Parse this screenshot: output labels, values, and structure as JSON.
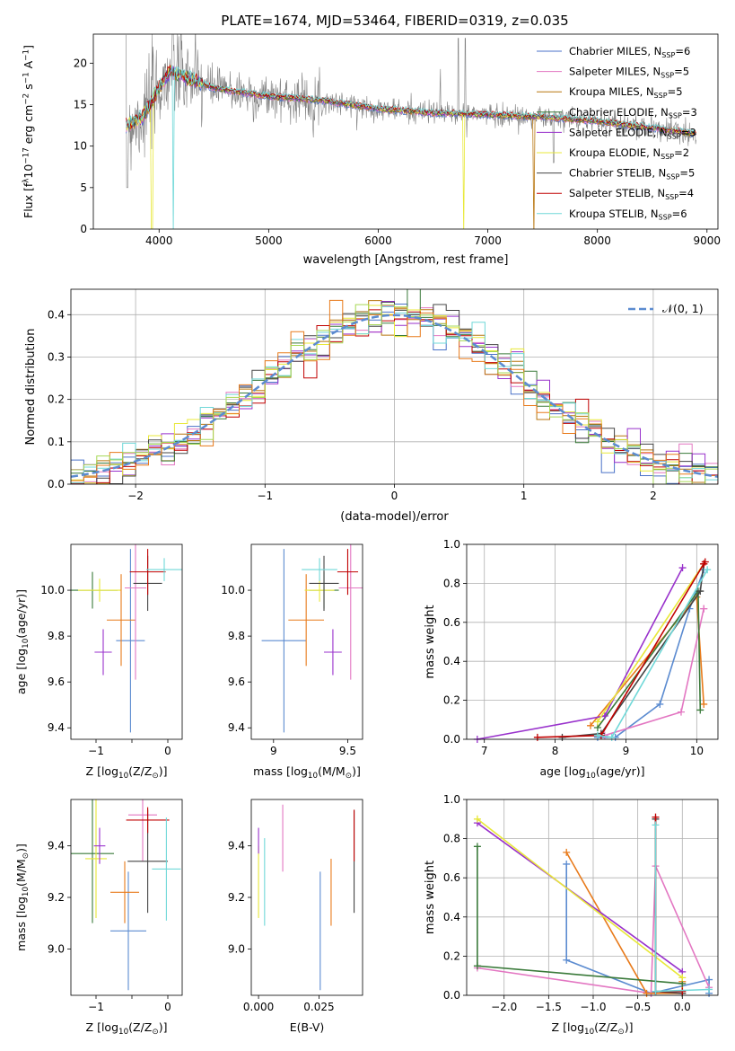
{
  "figure": {
    "title": "PLATE=1674, MJD=53464, FIBERID=0319, z=0.035"
  },
  "chart_data": [
    {
      "id": "spectrum",
      "type": "line",
      "xlabel": "wavelength [Angstrom, rest frame]",
      "ylabel_parts": [
        "Flux [f",
        "λ",
        "10",
        "−17",
        " erg cm",
        "−2",
        " s",
        "−1",
        " A",
        "−1",
        "]"
      ],
      "xlim": [
        3400,
        9100
      ],
      "ylim": [
        0,
        23.5
      ],
      "xticks": [
        4000,
        5000,
        6000,
        7000,
        8000,
        9000
      ],
      "yticks": [
        0,
        5,
        10,
        15,
        20
      ],
      "grid": false,
      "legend_position": "upper right",
      "series": [
        {
          "name_main": "Chabrier MILES, N",
          "name_sub": "SSP",
          "name_tail": "=6",
          "color": "#4a72c8"
        },
        {
          "name_main": "Salpeter MILES, N",
          "name_sub": "SSP",
          "name_tail": "=5",
          "color": "#e377c2"
        },
        {
          "name_main": "Kroupa MILES, N",
          "name_sub": "SSP",
          "name_tail": "=5",
          "color": "#b8760f"
        },
        {
          "name_main": "Chabrier ELODIE, N",
          "name_sub": "SSP",
          "name_tail": "=3",
          "color": "#3a7a3a"
        },
        {
          "name_main": "Salpeter ELODIE, N",
          "name_sub": "SSP",
          "name_tail": "=3",
          "color": "#9932cc"
        },
        {
          "name_main": "Kroupa ELODIE, N",
          "name_sub": "SSP",
          "name_tail": "=2",
          "color": "#e8e838"
        },
        {
          "name_main": "Chabrier STELIB, N",
          "name_sub": "SSP",
          "name_tail": "=5",
          "color": "#444444"
        },
        {
          "name_main": "Salpeter STELIB, N",
          "name_sub": "SSP",
          "name_tail": "=4",
          "color": "#c00000"
        },
        {
          "name_main": "Kroupa STELIB, N",
          "name_sub": "SSP",
          "name_tail": "=6",
          "color": "#70d8d8"
        }
      ],
      "data_series": {
        "name": "",
        "color": "#808080",
        "continuum_points": [
          [
            3700,
            12.5
          ],
          [
            3850,
            13.5
          ],
          [
            4000,
            17
          ],
          [
            4100,
            19
          ],
          [
            4300,
            18
          ],
          [
            4500,
            17
          ],
          [
            5000,
            16
          ],
          [
            5500,
            15.5
          ],
          [
            6000,
            14.5
          ],
          [
            6500,
            14
          ],
          [
            7000,
            13.8
          ],
          [
            7500,
            13.5
          ],
          [
            8000,
            13
          ],
          [
            8500,
            12.2
          ],
          [
            8900,
            11.5
          ]
        ]
      },
      "drops": [
        {
          "x": 3935,
          "series": "Kroupa ELODIE"
        },
        {
          "x": 4130,
          "series": "Kroupa STELIB"
        },
        {
          "x": 6780,
          "series": "Kroupa ELODIE"
        },
        {
          "x": 7420,
          "series": "Kroupa MILES"
        }
      ]
    },
    {
      "id": "residual_histogram",
      "type": "histogram",
      "xlabel": "(data-model)/error",
      "ylabel": "Normed distribution",
      "xlim": [
        -2.5,
        2.5
      ],
      "ylim": [
        0,
        0.46
      ],
      "xticks": [
        -2,
        -1,
        0,
        1,
        2
      ],
      "yticks": [
        0,
        0.1,
        0.2,
        0.3,
        0.4
      ],
      "grid": true,
      "legend": {
        "label": "𝒩(0, 1)",
        "position": "upper right"
      },
      "reference_curve": {
        "type": "gaussian",
        "mean": 0,
        "sigma": 1,
        "color": "#5b8bd0"
      },
      "bin_width": 0.1
    },
    {
      "id": "age_vs_Z",
      "type": "errorbar",
      "xlabel_parts": [
        "Z [log",
        "10",
        "(Z/Z",
        "⊙",
        ")]"
      ],
      "ylabel_parts": [
        "age  [log",
        "10",
        "(age/yr)]"
      ],
      "xlim": [
        -1.35,
        0.2
      ],
      "ylim": [
        9.35,
        10.2
      ],
      "xticks": [
        -1,
        -0.5,
        0
      ],
      "xticklabels": [
        "−1",
        "",
        "0"
      ],
      "yticks": [
        9.4,
        9.6,
        9.8,
        10.0
      ],
      "points": [
        {
          "x": -1.05,
          "y": 10.0,
          "xerr": 0.35,
          "yerr": 0.08,
          "color": "#3a7a3a"
        },
        {
          "x": -0.95,
          "y": 10.0,
          "xerr": 0.3,
          "yerr": 0.05,
          "color": "#e8e838"
        },
        {
          "x": -0.9,
          "y": 9.73,
          "xerr": 0.12,
          "yerr": 0.1,
          "color": "#9932cc"
        },
        {
          "x": -0.52,
          "y": 9.78,
          "xerr": 0.2,
          "yerr": 0.4,
          "color": "#5b8bd0"
        },
        {
          "x": -0.65,
          "y": 9.87,
          "xerr": 0.2,
          "yerr": 0.2,
          "color": "#e87a1a"
        },
        {
          "x": -0.45,
          "y": 10.01,
          "xerr": 0.15,
          "yerr": 0.4,
          "color": "#e377c2"
        },
        {
          "x": -0.28,
          "y": 10.03,
          "xerr": 0.2,
          "yerr": 0.12,
          "color": "#444444"
        },
        {
          "x": -0.28,
          "y": 10.08,
          "xerr": 0.25,
          "yerr": 0.1,
          "color": "#c00000"
        },
        {
          "x": -0.05,
          "y": 10.09,
          "xerr": 0.25,
          "yerr": 0.05,
          "color": "#70d8d8"
        }
      ]
    },
    {
      "id": "age_vs_mass",
      "type": "errorbar",
      "xlabel_parts": [
        "mass [log",
        "10",
        "(M/M",
        "⊙",
        ")]"
      ],
      "xlim": [
        8.85,
        9.6
      ],
      "ylim": [
        9.35,
        10.2
      ],
      "xticks": [
        9.0,
        9.5
      ],
      "yticks": [
        9.4,
        9.6,
        9.8,
        10.0
      ],
      "points": [
        {
          "x": 9.07,
          "y": 9.78,
          "xerr": 0.15,
          "yerr": 0.4,
          "color": "#5b8bd0"
        },
        {
          "x": 9.22,
          "y": 9.87,
          "xerr": 0.12,
          "yerr": 0.2,
          "color": "#e87a1a"
        },
        {
          "x": 9.34,
          "y": 10.0,
          "xerr": 0.1,
          "yerr": 0.08,
          "color": "#3a7a3a"
        },
        {
          "x": 9.31,
          "y": 10.0,
          "xerr": 0.1,
          "yerr": 0.05,
          "color": "#e8e838"
        },
        {
          "x": 9.4,
          "y": 9.73,
          "xerr": 0.06,
          "yerr": 0.1,
          "color": "#9932cc"
        },
        {
          "x": 9.52,
          "y": 10.01,
          "xerr": 0.08,
          "yerr": 0.4,
          "color": "#e377c2"
        },
        {
          "x": 9.34,
          "y": 10.03,
          "xerr": 0.1,
          "yerr": 0.12,
          "color": "#444444"
        },
        {
          "x": 9.5,
          "y": 10.08,
          "xerr": 0.07,
          "yerr": 0.1,
          "color": "#c00000"
        },
        {
          "x": 9.31,
          "y": 10.09,
          "xerr": 0.12,
          "yerr": 0.05,
          "color": "#70d8d8"
        }
      ]
    },
    {
      "id": "massweight_vs_age",
      "type": "line",
      "xlabel_parts": [
        "age  [log",
        "10",
        "(age/yr)]"
      ],
      "ylabel": "mass weight",
      "xlim": [
        6.75,
        10.3
      ],
      "ylim": [
        0,
        1.0
      ],
      "xticks": [
        7,
        8,
        9,
        10
      ],
      "yticks": [
        0.0,
        0.2,
        0.4,
        0.6,
        0.8,
        1.0
      ],
      "grid": true,
      "series": [
        {
          "color": "#5b8bd0",
          "points": [
            [
              8.6,
              0.01
            ],
            [
              8.85,
              0.01
            ],
            [
              9.48,
              0.18
            ],
            [
              9.9,
              0.67
            ],
            [
              10.1,
              0.87
            ]
          ]
        },
        {
          "color": "#e377c2",
          "points": [
            [
              8.7,
              0.02
            ],
            [
              9.78,
              0.14
            ],
            [
              10.1,
              0.67
            ],
            [
              10.1,
              0.67
            ]
          ]
        },
        {
          "color": "#e87a1a",
          "points": [
            [
              8.5,
              0.07
            ],
            [
              10.0,
              0.73
            ],
            [
              10.1,
              0.18
            ]
          ]
        },
        {
          "color": "#3a7a3a",
          "points": [
            [
              8.6,
              0.06
            ],
            [
              10.02,
              0.76
            ],
            [
              10.05,
              0.15
            ]
          ]
        },
        {
          "color": "#9932cc",
          "points": [
            [
              6.9,
              0.0
            ],
            [
              8.7,
              0.12
            ],
            [
              9.8,
              0.88
            ]
          ]
        },
        {
          "color": "#e8e838",
          "points": [
            [
              8.6,
              0.09
            ],
            [
              10.1,
              0.9
            ]
          ]
        },
        {
          "color": "#444444",
          "points": [
            [
              8.1,
              0.01
            ],
            [
              8.65,
              0.03
            ],
            [
              10.05,
              0.76
            ],
            [
              10.1,
              0.9
            ]
          ]
        },
        {
          "color": "#c00000",
          "points": [
            [
              7.75,
              0.01
            ],
            [
              8.65,
              0.02
            ],
            [
              10.1,
              0.9
            ],
            [
              10.12,
              0.91
            ]
          ]
        },
        {
          "color": "#70d8d8",
          "points": [
            [
              8.6,
              0.02
            ],
            [
              8.8,
              0.01
            ],
            [
              10.15,
              0.87
            ]
          ]
        }
      ]
    },
    {
      "id": "mass_vs_Z",
      "type": "errorbar",
      "xlabel_parts": [
        "Z [log",
        "10",
        "(Z/Z",
        "⊙",
        ")]"
      ],
      "ylabel_parts": [
        "mass [log",
        "10",
        "(M/M",
        "⊙",
        ")]"
      ],
      "xlim": [
        -1.35,
        0.2
      ],
      "ylim": [
        8.82,
        9.58
      ],
      "xticks": [
        -1,
        -0.5,
        0
      ],
      "xticklabels": [
        "−1",
        "",
        "0"
      ],
      "yticks": [
        9.0,
        9.2,
        9.4
      ],
      "points": [
        {
          "x": -1.05,
          "y": 9.37,
          "xerr": 0.3,
          "yerr": 0.27,
          "color": "#3a7a3a"
        },
        {
          "x": -1.0,
          "y": 9.35,
          "xerr": 0.15,
          "yerr": 0.23,
          "color": "#e8e838"
        },
        {
          "x": -0.95,
          "y": 9.4,
          "xerr": 0.08,
          "yerr": 0.07,
          "color": "#9932cc"
        },
        {
          "x": -0.55,
          "y": 9.07,
          "xerr": 0.25,
          "yerr": 0.23,
          "color": "#5b8bd0"
        },
        {
          "x": -0.6,
          "y": 9.22,
          "xerr": 0.2,
          "yerr": 0.12,
          "color": "#e87a1a"
        },
        {
          "x": -0.35,
          "y": 9.52,
          "xerr": 0.2,
          "yerr": 0.18,
          "color": "#e377c2"
        },
        {
          "x": -0.28,
          "y": 9.34,
          "xerr": 0.28,
          "yerr": 0.2,
          "color": "#444444"
        },
        {
          "x": -0.28,
          "y": 9.5,
          "xerr": 0.3,
          "yerr": 0.05,
          "color": "#c00000"
        },
        {
          "x": -0.02,
          "y": 9.31,
          "xerr": 0.2,
          "yerr": 0.2,
          "color": "#70d8d8"
        }
      ]
    },
    {
      "id": "ebv_bars",
      "type": "errorbar",
      "xlabel": "E(B-V)",
      "xlim": [
        -0.003,
        0.043
      ],
      "ylim": [
        8.82,
        9.58
      ],
      "xticks": [
        0.0,
        0.025
      ],
      "xticklabels": [
        "0.000",
        "0.025"
      ],
      "yticks": [
        9.0,
        9.2,
        9.4
      ],
      "points": [
        {
          "x": 0.0,
          "y": 9.26,
          "xerr": 0,
          "yerr": 0.14,
          "color": "#e8e838"
        },
        {
          "x": 0.0,
          "y": 9.42,
          "xerr": 0,
          "yerr": 0.05,
          "color": "#9932cc"
        },
        {
          "x": 0.0025,
          "y": 9.26,
          "xerr": 0,
          "yerr": 0.17,
          "color": "#70d8d8"
        },
        {
          "x": 0.01,
          "y": 9.43,
          "xerr": 0,
          "yerr": 0.13,
          "color": "#e377c2"
        },
        {
          "x": 0.0255,
          "y": 9.07,
          "xerr": 0,
          "yerr": 0.23,
          "color": "#5b8bd0"
        },
        {
          "x": 0.03,
          "y": 9.22,
          "xerr": 0,
          "yerr": 0.13,
          "color": "#e87a1a"
        },
        {
          "x": 0.0395,
          "y": 9.34,
          "xerr": 0,
          "yerr": 0.2,
          "color": "#444444"
        },
        {
          "x": 0.0395,
          "y": 9.44,
          "xerr": 0,
          "yerr": 0.1,
          "color": "#c00000"
        }
      ]
    },
    {
      "id": "massweight_vs_Z",
      "type": "line",
      "xlabel_parts": [
        "Z [log",
        "10",
        "(Z/Z",
        "⊙",
        ")]"
      ],
      "ylabel": "mass weight",
      "xlim": [
        -2.42,
        0.4
      ],
      "ylim": [
        0,
        1.0
      ],
      "xticks": [
        -2.0,
        -1.5,
        -1.0,
        -0.5,
        0.0
      ],
      "xticklabels": [
        "−2.0",
        "−1.5",
        "−1.0",
        "−0.5",
        "0.0"
      ],
      "yticks": [
        0.0,
        0.2,
        0.4,
        0.6,
        0.8,
        1.0
      ],
      "grid": true,
      "series": [
        {
          "color": "#5b8bd0",
          "points": [
            [
              -1.3,
              0.67
            ],
            [
              -1.3,
              0.18
            ],
            [
              -0.35,
              0.01
            ],
            [
              0.3,
              0.08
            ],
            [
              0.3,
              0.01
            ]
          ]
        },
        {
          "color": "#e377c2",
          "points": [
            [
              -2.3,
              0.14
            ],
            [
              -0.35,
              0.01
            ],
            [
              -0.3,
              0.66
            ],
            [
              0.3,
              0.04
            ]
          ]
        },
        {
          "color": "#e87a1a",
          "points": [
            [
              -1.3,
              0.73
            ],
            [
              -0.4,
              0.01
            ],
            [
              0.0,
              0.01
            ],
            [
              0.0,
              0.07
            ]
          ]
        },
        {
          "color": "#3a7a3a",
          "points": [
            [
              -2.3,
              0.76
            ],
            [
              -2.3,
              0.15
            ],
            [
              0.0,
              0.06
            ]
          ]
        },
        {
          "color": "#9932cc",
          "points": [
            [
              -2.3,
              0.88
            ],
            [
              0.0,
              0.12
            ]
          ]
        },
        {
          "color": "#e8e838",
          "points": [
            [
              -2.3,
              0.9
            ],
            [
              0.0,
              0.09
            ]
          ]
        },
        {
          "color": "#444444",
          "points": [
            [
              -0.3,
              0.9
            ],
            [
              -0.3,
              0.02
            ],
            [
              0.0,
              0.01
            ]
          ]
        },
        {
          "color": "#c00000",
          "points": [
            [
              -0.3,
              0.91
            ],
            [
              -0.3,
              0.02
            ],
            [
              0.0,
              0.02
            ]
          ]
        },
        {
          "color": "#70d8d8",
          "points": [
            [
              -0.3,
              0.87
            ],
            [
              -0.3,
              0.02
            ],
            [
              0.3,
              0.03
            ]
          ]
        }
      ]
    }
  ]
}
